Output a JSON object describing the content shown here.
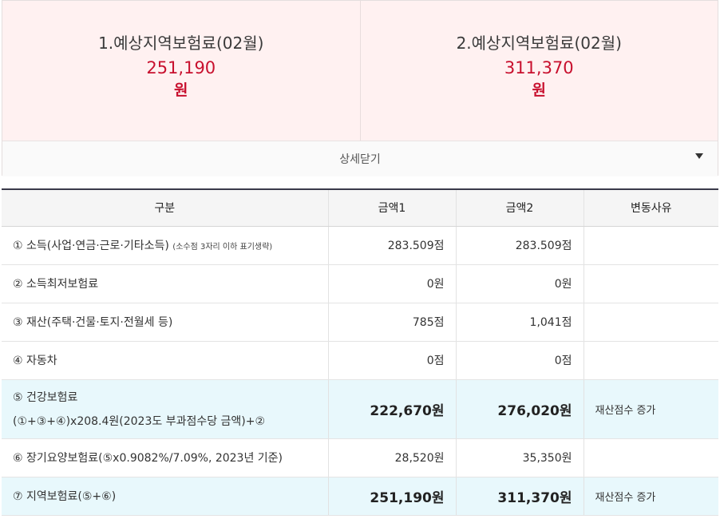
{
  "summary": {
    "card1": {
      "title": "1.예상지역보험료(02월)",
      "amount": "251,190",
      "unit": "원"
    },
    "card2": {
      "title": "2.예상지역보험료(02월)",
      "amount": "311,370",
      "unit": "원"
    },
    "toggle_label": "상세닫기",
    "toggle_icon": "caret-down-icon"
  },
  "table": {
    "headers": [
      "구분",
      "금액1",
      "금액2",
      "변동사유"
    ],
    "rows": [
      {
        "label": "① 소득(사업·연금·근로·기타소득)",
        "note": "(소수점 3자리 이하 표기생략)",
        "a1": "283.509점",
        "a2": "283.509점",
        "reason": ""
      },
      {
        "label": "② 소득최저보험료",
        "a1": "0원",
        "a2": "0원",
        "reason": ""
      },
      {
        "label": "③ 재산(주택·건물·토지·전월세 등)",
        "a1": "785점",
        "a2": "1,041점",
        "reason": ""
      },
      {
        "label": "④ 자동차",
        "a1": "0점",
        "a2": "0점",
        "reason": ""
      },
      {
        "label": "⑤ 건강보험료",
        "label2": "(①+③+④)x208.4원(2023도 부과점수당 금액)+②",
        "a1": "222,670원",
        "a2": "276,020원",
        "reason": "재산점수 증가"
      },
      {
        "label": "⑥ 장기요양보험료(⑤x0.9082%/7.09%, 2023년 기준)",
        "a1": "28,520원",
        "a2": "35,350원",
        "reason": ""
      },
      {
        "label": "⑦ 지역보험료(⑤+⑥)",
        "a1": "251,190원",
        "a2": "311,370원",
        "reason": "재산점수 증가"
      }
    ]
  }
}
